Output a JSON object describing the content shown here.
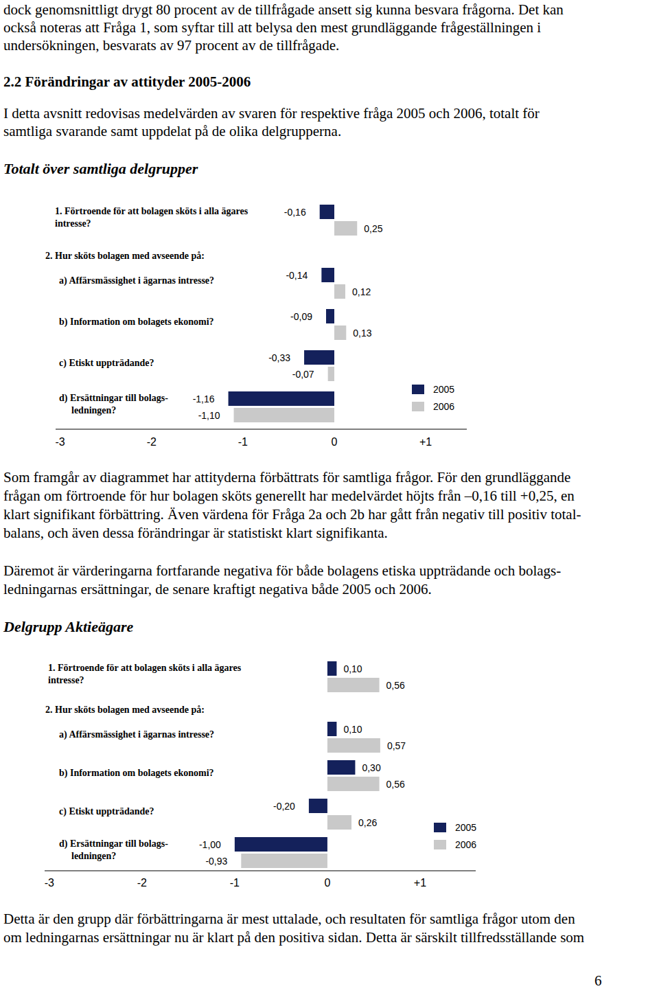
{
  "document": {
    "intro_lines": [
      "dock genomsnittligt drygt 80 procent av de tillfrågade ansett sig kunna besvara frågorna. Det kan",
      "också noteras att Fråga 1, som syftar till att belysa den mest grundläggande frågeställningen i",
      "undersökningen, besvarats av 97 procent av de tillfrågade."
    ],
    "heading": "2.2 Förändringar av attityder 2005-2006",
    "section_intro_lines": [
      "I detta avsnitt redovisas medelvärden av svaren för respektive fråga 2005 och 2006, totalt för",
      "samtliga svarande samt uppdelat på de olika delgrupperna."
    ],
    "subheading_1": "Totalt över samtliga delgrupper",
    "after_chart_1": [
      [
        "Som framgår av diagrammet har attityderna förbättrats för samtliga frågor. För den grundläggande",
        "frågan om förtroende för hur bolagen sköts generellt har medelvärdet höjts från –0,16 till +0,25, en",
        "klart signifikant förbättring. Även värdena för Fråga 2a och 2b har gått från negativ till positiv total-",
        "balans, och även dessa förändringar är statistiskt klart signifikanta."
      ],
      [
        "Däremot är värderingarna fortfarande negativa för både bolagens etiska uppträdande och bolags-",
        "ledningarnas ersättningar, de senare kraftigt negativa både 2005 och 2006."
      ]
    ],
    "subheading_2": "Delgrupp Aktieägare",
    "after_chart_2": [
      "Detta är den grupp där förbättringarna är mest uttalade, och resultaten för samtliga frågor utom den",
      "om ledningarnas ersättningar nu är klart på den positiva sidan. Detta är särskilt tillfredsställande som"
    ],
    "page_number": "6"
  },
  "chart_data": [
    {
      "type": "bar",
      "orientation": "horizontal",
      "categories": [
        "1. Förtroende för att bolagen sköts i alla ägares\nintresse?",
        "a) Affärsmässighet i ägarnas intresse?",
        "b) Information om bolagets ekonomi?",
        "c) Etiskt uppträdande?",
        "d) Ersättningar till bolags-\nledningen?"
      ],
      "annotations": [
        "2. Hur sköts bolagen med avseende på:"
      ],
      "series": [
        {
          "name": "2005",
          "color": "#14215b",
          "values": [
            -0.16,
            -0.14,
            -0.09,
            -0.33,
            -1.16
          ],
          "value_labels": [
            "-0,16",
            "-0,14",
            "-0,09",
            "-0,33",
            "-1,16"
          ]
        },
        {
          "name": "2006",
          "color": "#c9c9c9",
          "values": [
            0.25,
            0.12,
            0.13,
            -0.07,
            -1.1
          ],
          "value_labels": [
            "0,25",
            "0,12",
            "0,13",
            "-0,07",
            "-1,10"
          ]
        }
      ],
      "xlim": [
        -3.05,
        1.45
      ],
      "xticks": [
        -3,
        -2,
        -1,
        0,
        {
          "value": 1,
          "label": "+1"
        }
      ],
      "grid": false,
      "data_labels": true,
      "legend": "right"
    },
    {
      "type": "bar",
      "orientation": "horizontal",
      "categories": [
        "1. Förtroende för att bolagen sköts i alla ägares\nintresse?",
        "a) Affärsmässighet i ägarnas intresse?",
        "b) Information om bolagets ekonomi?",
        "c) Etiskt uppträdande?",
        "d) Ersättningar till bolags-\nledningen?"
      ],
      "annotations": [
        "2. Hur sköts bolagen med avseende på:"
      ],
      "series": [
        {
          "name": "2005",
          "color": "#14215b",
          "values": [
            0.1,
            0.1,
            0.3,
            -0.2,
            -1.0
          ],
          "value_labels": [
            "0,10",
            "0,10",
            "0,30",
            "-0,20",
            "-1,00"
          ]
        },
        {
          "name": "2006",
          "color": "#c9c9c9",
          "values": [
            0.56,
            0.57,
            0.56,
            0.26,
            -0.93
          ],
          "value_labels": [
            "0,56",
            "0,57",
            "0,56",
            "0,26",
            "-0,93"
          ]
        }
      ],
      "xlim": [
        -3.05,
        1.6
      ],
      "xticks": [
        -3,
        -2,
        -1,
        0,
        {
          "value": 1,
          "label": "+1"
        }
      ],
      "grid": false,
      "data_labels": true,
      "legend": "right"
    }
  ]
}
